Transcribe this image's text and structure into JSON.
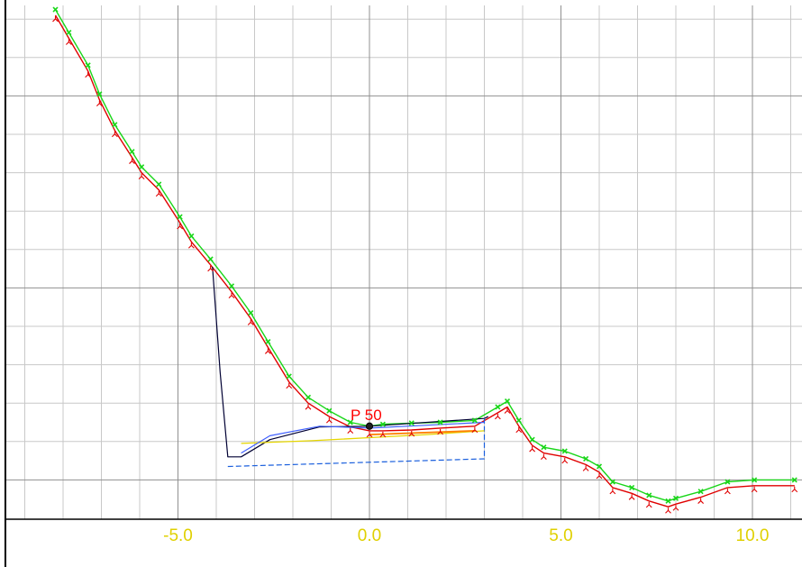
{
  "chart_data": {
    "type": "line",
    "title": "",
    "xlabel": "",
    "ylabel": "",
    "xlim": [
      -9.5,
      11.1
    ],
    "ylim": [
      -4.65,
      8.75
    ],
    "x_major_ticks": [
      -5.0,
      0.0,
      5.0,
      10.0
    ],
    "x_tick_labels": [
      "-5.0",
      "0.0",
      "5.0",
      "10.0"
    ],
    "x_minor_step": 1.0,
    "y_minor_step": 1.0,
    "y_major_ticks": [
      -4,
      1,
      6
    ],
    "grid": true,
    "legend": "none",
    "colors": {
      "minor_grid": "#c8c8c8",
      "major_grid": "#909090",
      "tick_labels": "#e0d000",
      "green_line": "#19d619",
      "red_line": "#e00000",
      "excavation_outline": "#000033",
      "excavation_bottom": "#1a5fdd",
      "yellow_line": "#e6d600",
      "navy_line": "#101060",
      "blue_line": "#4060ff",
      "orange_line": "#ff8000",
      "point_label": "#ff0000",
      "point_marker": "#202020",
      "axis_frame": "#000000"
    },
    "series": [
      {
        "role": "terrain_upper",
        "color": "green",
        "x": [
          -8.2,
          -7.85,
          -7.35,
          -7.05,
          -6.65,
          -6.2,
          -5.95,
          -5.5,
          -4.95,
          -4.65,
          -4.15,
          -3.6,
          -3.1,
          -2.65,
          -2.1,
          -1.6,
          -1.05,
          -0.5,
          0.0,
          0.35,
          1.1,
          1.85,
          2.75,
          3.35,
          3.6,
          3.9,
          4.25,
          4.55,
          5.1,
          5.65,
          6.0,
          6.35,
          6.85,
          7.3,
          7.8,
          8.0,
          8.65,
          9.35,
          10.05,
          11.1
        ],
        "y": [
          8.25,
          7.65,
          6.8,
          6.05,
          5.25,
          4.55,
          4.15,
          3.7,
          2.85,
          2.35,
          1.75,
          1.05,
          0.35,
          -0.4,
          -1.3,
          -1.85,
          -2.2,
          -2.5,
          -2.6,
          -2.55,
          -2.52,
          -2.5,
          -2.45,
          -2.1,
          -1.95,
          -2.45,
          -2.95,
          -3.15,
          -3.25,
          -3.45,
          -3.65,
          -4.05,
          -4.2,
          -4.4,
          -4.55,
          -4.48,
          -4.3,
          -4.05,
          -4.0,
          -4.0
        ]
      },
      {
        "role": "terrain_lower",
        "color": "red",
        "x": [
          -8.2,
          -7.85,
          -7.35,
          -7.05,
          -6.65,
          -6.2,
          -5.95,
          -5.5,
          -4.95,
          -4.65,
          -4.15,
          -3.6,
          -3.1,
          -2.65,
          -2.1,
          -1.6,
          -1.05,
          -0.5,
          0.0,
          0.35,
          1.1,
          1.85,
          2.75,
          3.35,
          3.6,
          3.9,
          4.25,
          4.55,
          5.1,
          5.65,
          6.0,
          6.35,
          6.85,
          7.3,
          7.8,
          8.0,
          8.65,
          9.35,
          10.05,
          11.1
        ],
        "y": [
          8.1,
          7.5,
          6.65,
          5.9,
          5.1,
          4.4,
          4.0,
          3.55,
          2.7,
          2.2,
          1.6,
          0.9,
          0.2,
          -0.55,
          -1.45,
          -2.0,
          -2.35,
          -2.62,
          -2.72,
          -2.72,
          -2.7,
          -2.65,
          -2.6,
          -2.25,
          -2.1,
          -2.6,
          -3.1,
          -3.3,
          -3.4,
          -3.6,
          -3.8,
          -4.2,
          -4.35,
          -4.55,
          -4.7,
          -4.63,
          -4.45,
          -4.2,
          -4.15,
          -4.15
        ]
      },
      {
        "role": "excavation_outline",
        "color": "navy",
        "x": [
          -4.1,
          -3.9,
          -3.7,
          -3.35,
          -2.6,
          -1.3,
          0.0,
          3.0,
          3.1
        ],
        "y": [
          1.55,
          -1.2,
          -3.4,
          -3.4,
          -2.95,
          -2.62,
          -2.6,
          -2.4,
          -2.35
        ]
      },
      {
        "role": "excavation_bottom",
        "color": "blue_dashed",
        "x": [
          -3.7,
          3.0,
          3.0
        ],
        "y": [
          -3.65,
          -3.45,
          -2.4
        ]
      },
      {
        "role": "water_level",
        "color": "yellow",
        "x": [
          -3.35,
          -1.5,
          0.0,
          1.5,
          3.0
        ],
        "y": [
          -3.05,
          -2.98,
          -2.9,
          -2.82,
          -2.72
        ]
      },
      {
        "role": "excavation_top_blue",
        "color": "blue",
        "x": [
          -3.35,
          -2.6,
          -1.3,
          0.0,
          3.0
        ],
        "y": [
          -3.3,
          -2.85,
          -2.6,
          -2.65,
          -2.5
        ]
      },
      {
        "role": "marked_segment",
        "color": "orange",
        "x": [
          0.0,
          2.75
        ],
        "y": [
          -2.82,
          -2.72
        ]
      }
    ],
    "annotations": [
      {
        "text": "P 50",
        "x": 0.0,
        "y": -2.6
      }
    ]
  }
}
